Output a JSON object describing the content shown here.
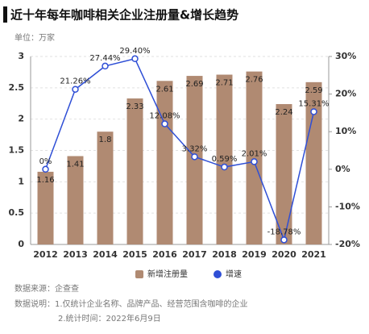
{
  "chart_data": {
    "type": "bar_line",
    "title": "近十年每年咖啡相关企业注册量&增长趋势",
    "unit": "单位：万家",
    "categories": [
      "2012",
      "2013",
      "2014",
      "2015",
      "2016",
      "2017",
      "2018",
      "2019",
      "2020",
      "2021"
    ],
    "series": [
      {
        "name": "新增注册量",
        "color": "#b08a72",
        "values": [
          1.16,
          1.41,
          1.8,
          2.33,
          2.61,
          2.69,
          2.71,
          2.76,
          2.24,
          2.59
        ]
      },
      {
        "name": "增速",
        "color": "#2f4fd6",
        "axis": "y2",
        "values": [
          0,
          21.26,
          27.44,
          29.4,
          12.08,
          3.32,
          0.59,
          2.01,
          -18.78,
          15.31
        ],
        "value_labels": [
          "0%",
          "21.26%",
          "27.44%",
          "29.40%",
          "12.08%",
          "3.32%",
          "0.59%",
          "2.01%",
          "-18.78%",
          "15.31%"
        ]
      }
    ],
    "ylim": [
      0,
      3
    ],
    "yticks": [
      0,
      0.5,
      1,
      1.5,
      2,
      2.5,
      3
    ],
    "y2lim": [
      -20,
      30
    ],
    "y2ticks": [
      {
        "value": -20,
        "label": "-20%"
      },
      {
        "value": -10,
        "label": "-10%"
      },
      {
        "value": 0,
        "label": "0%"
      },
      {
        "value": 10,
        "label": "10%"
      },
      {
        "value": 20,
        "label": "20%"
      },
      {
        "value": 30,
        "label": "30%"
      }
    ],
    "grid": true,
    "notes": [
      "数据来源：企查查",
      "数据说明：1.仅统计企业名称、品牌产品、经营范围含咖啡的企业",
      "2.统计时间：2022年6月9日"
    ]
  }
}
